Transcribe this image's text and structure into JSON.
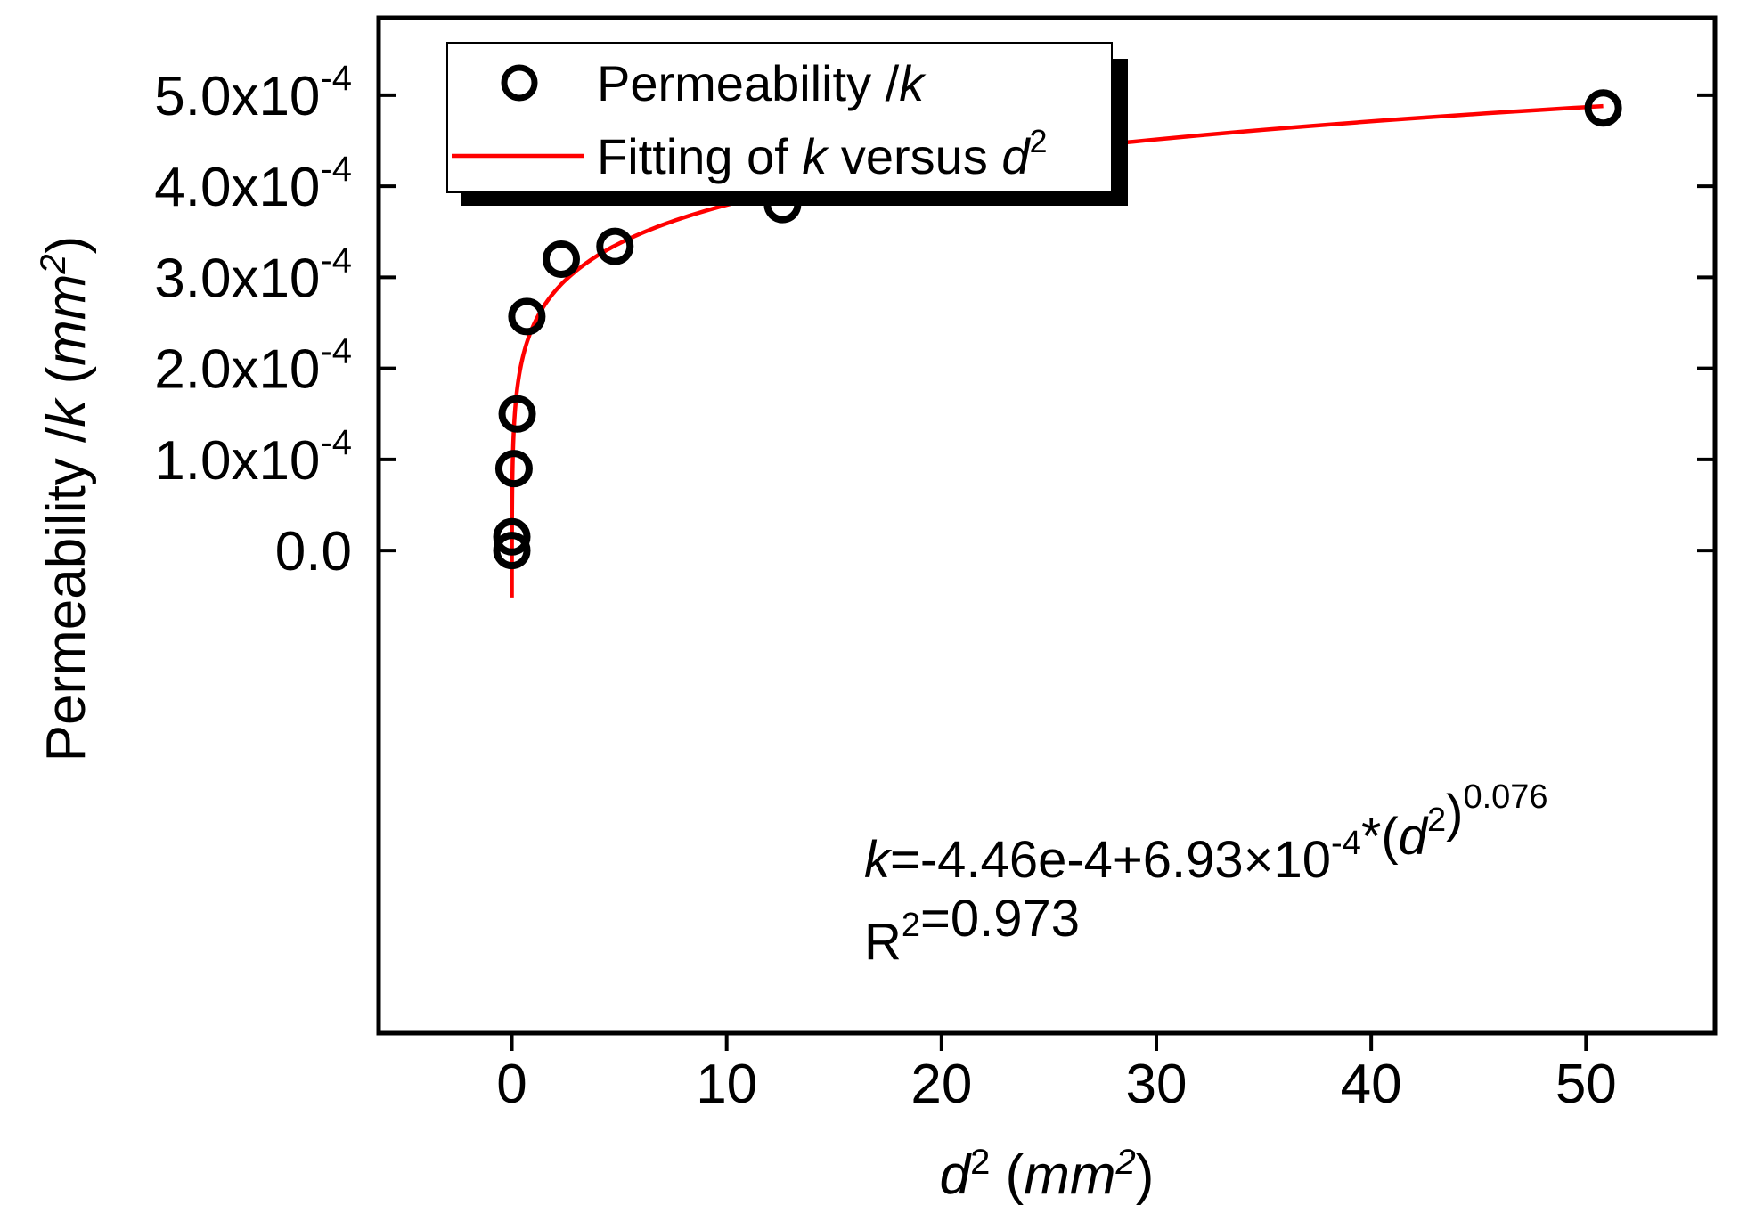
{
  "chart_data": {
    "type": "scatter",
    "title": "",
    "xlabel": {
      "var": "d",
      "sup": "2",
      "unit_open": " (",
      "unit": "mm",
      "unit_sup": "2",
      "unit_close": ")"
    },
    "ylabel": {
      "prefix": "Permeability /",
      "var": "k",
      "unit_open": " (",
      "unit": "mm",
      "unit_sup": "2",
      "unit_close": ")"
    },
    "xlim": [
      -6.2,
      56
    ],
    "ylim": [
      -0.00053,
      0.000585
    ],
    "xticks": [
      0,
      10,
      20,
      30,
      40,
      50
    ],
    "xtick_labels": [
      "0",
      "10",
      "20",
      "30",
      "40",
      "50"
    ],
    "yticks": [
      0,
      0.0001,
      0.0002,
      0.0003,
      0.0004,
      0.0005
    ],
    "ytick_labels": [
      {
        "mant": "0.0",
        "exp": ""
      },
      {
        "mant": "1.0x10",
        "exp": "-4"
      },
      {
        "mant": "2.0x10",
        "exp": "-4"
      },
      {
        "mant": "3.0x10",
        "exp": "-4"
      },
      {
        "mant": "4.0x10",
        "exp": "-4"
      },
      {
        "mant": "5.0x10",
        "exp": "-4"
      }
    ],
    "series": [
      {
        "name": "Permeability /k",
        "kind": "scatter",
        "x": [
          0.0,
          0.0,
          0.1,
          0.25,
          0.7,
          2.3,
          4.8,
          12.6,
          50.8
        ],
        "y": [
          0.0,
          1.5e-05,
          9e-05,
          0.00015,
          0.000257,
          0.00032,
          0.000334,
          0.00038,
          0.000486
        ]
      },
      {
        "name": "Fitting of k versus d2",
        "kind": "fit",
        "a": -0.000446,
        "b": 0.000693,
        "c": 0.076,
        "x_range": [
          0.0006,
          50.8
        ]
      }
    ],
    "legend": {
      "position": "top-left",
      "entries": [
        {
          "parts": [
            {
              "t": "Permeability /"
            },
            {
              "t": "k",
              "i": true
            }
          ]
        },
        {
          "parts": [
            {
              "t": "Fitting of "
            },
            {
              "t": "k",
              "i": true
            },
            {
              "t": " versus "
            },
            {
              "t": "d",
              "i": true
            },
            {
              "t": "2",
              "sup": true
            }
          ]
        }
      ]
    },
    "annotations": [
      {
        "parts": [
          {
            "t": "k",
            "i": true
          },
          {
            "t": "=-4.46e-4+6.93×10"
          },
          {
            "t": "-4",
            "sup": true
          },
          {
            "t": "*("
          },
          {
            "t": "d",
            "i": true
          },
          {
            "t": "2",
            "sup": true
          },
          {
            "t": ")"
          },
          {
            "t": "0.076",
            "sup": true
          }
        ]
      },
      {
        "parts": [
          {
            "t": "R"
          },
          {
            "t": "2",
            "sup": true
          },
          {
            "t": "=0.973"
          }
        ]
      }
    ],
    "colors": {
      "points": "#000000",
      "fit": "#ff0000",
      "axes": "#000000",
      "legend_shadow": "#000000"
    }
  }
}
